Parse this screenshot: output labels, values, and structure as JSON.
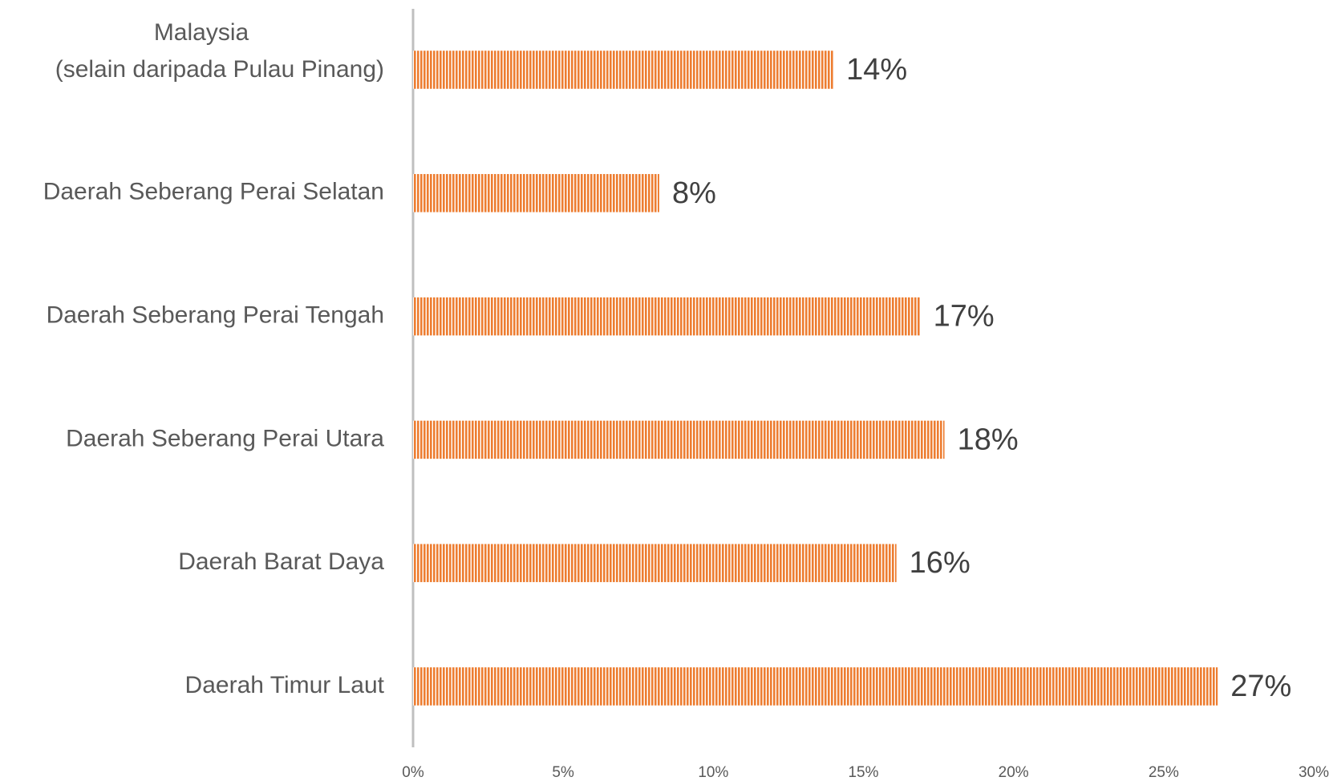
{
  "chart_data": {
    "type": "barh",
    "categories": [
      [
        "Malaysia",
        "(selain daripada Pulau Pinang)"
      ],
      "Daerah Seberang Perai Selatan",
      "Daerah Seberang Perai Tengah",
      "Daerah Seberang Perai Utara",
      "Daerah Barat Daya",
      "Daerah Timur Laut"
    ],
    "values": [
      14,
      8.2,
      16.9,
      17.7,
      16.1,
      26.8
    ],
    "value_labels": [
      "14%",
      "8%",
      "17%",
      "18%",
      "16%",
      "27%"
    ],
    "color": "#ed7d31",
    "xlim": [
      0,
      30
    ],
    "xticks": [
      {
        "value": 0,
        "label": "0%"
      },
      {
        "value": 5,
        "label": "5%"
      },
      {
        "value": 10,
        "label": "10%"
      },
      {
        "value": 15,
        "label": "15%"
      },
      {
        "value": 20,
        "label": "20%"
      },
      {
        "value": 25,
        "label": "25%"
      },
      {
        "value": 30,
        "label": "30%"
      }
    ],
    "grid": false
  }
}
